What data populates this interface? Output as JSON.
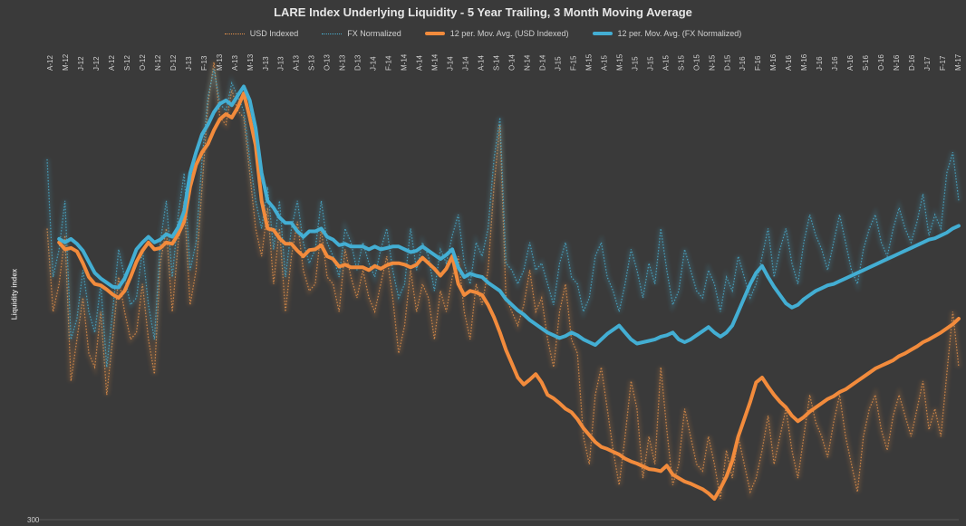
{
  "chart_data": {
    "type": "line",
    "title": "LARE Index Underlying Liquidity - 5 Year Trailing, 3 Month Moving Average",
    "ylabel": "Liquidity index",
    "ytick_labels": [
      {
        "value": 300,
        "label": "300"
      }
    ],
    "ylim": [
      300,
      940
    ],
    "legend_position": "top",
    "x_tick_labels": [
      "A-12",
      "M-12",
      "J-12",
      "J-12",
      "A-12",
      "S-12",
      "O-12",
      "N-12",
      "D-12",
      "J-13",
      "F-13",
      "M-13",
      "A-13",
      "M-13",
      "J-13",
      "J-13",
      "A-13",
      "S-13",
      "O-13",
      "N-13",
      "D-13",
      "J-14",
      "F-14",
      "M-14",
      "A-14",
      "M-14",
      "J-14",
      "J-14",
      "A-14",
      "S-14",
      "O-14",
      "N-14",
      "D-14",
      "J-15",
      "F-15",
      "M-15",
      "A-15",
      "M-15",
      "J-15",
      "J-15",
      "A-15",
      "S-15",
      "O-15",
      "N-15",
      "D-15",
      "J-16",
      "F-16",
      "M-16",
      "A-16",
      "M-16",
      "J-16",
      "J-16",
      "A-16",
      "S-16",
      "O-16",
      "N-16",
      "D-16",
      "J-17",
      "F-17",
      "M-17"
    ],
    "series": [
      {
        "name": "USD Indexed",
        "style": "dotted",
        "color": "#e8934a",
        "values": [
          720,
          600,
          640,
          710,
          500,
          560,
          620,
          540,
          520,
          600,
          480,
          560,
          650,
          600,
          560,
          570,
          640,
          560,
          510,
          670,
          720,
          600,
          700,
          760,
          610,
          660,
          780,
          900,
          960,
          880,
          870,
          920,
          890,
          880,
          800,
          720,
          680,
          750,
          640,
          720,
          600,
          680,
          730,
          660,
          630,
          640,
          720,
          650,
          640,
          600,
          690,
          650,
          620,
          660,
          620,
          600,
          640,
          680,
          620,
          540,
          580,
          660,
          600,
          640,
          620,
          560,
          630,
          600,
          650,
          680,
          600,
          560,
          640,
          610,
          660,
          780,
          870,
          620,
          600,
          580,
          610,
          660,
          600,
          620,
          560,
          520,
          600,
          640,
          560,
          540,
          420,
          380,
          480,
          520,
          460,
          400,
          350,
          420,
          500,
          460,
          360,
          420,
          380,
          520,
          430,
          350,
          380,
          460,
          420,
          380,
          370,
          420,
          380,
          330,
          400,
          360,
          420,
          380,
          340,
          360,
          400,
          450,
          380,
          420,
          460,
          400,
          360,
          420,
          480,
          440,
          420,
          390,
          440,
          480,
          420,
          380,
          340,
          420,
          460,
          480,
          430,
          400,
          450,
          480,
          450,
          420,
          460,
          500,
          430,
          460,
          420,
          510,
          600,
          520
        ]
      },
      {
        "name": "FX Normalized",
        "style": "dotted",
        "color": "#49aecf",
        "values": [
          820,
          650,
          690,
          760,
          560,
          590,
          660,
          600,
          570,
          640,
          520,
          600,
          690,
          650,
          610,
          620,
          690,
          610,
          560,
          700,
          760,
          650,
          740,
          800,
          660,
          700,
          820,
          910,
          950,
          900,
          890,
          930,
          910,
          890,
          820,
          760,
          720,
          780,
          690,
          760,
          650,
          720,
          760,
          700,
          670,
          690,
          760,
          700,
          680,
          650,
          720,
          700,
          660,
          700,
          670,
          650,
          690,
          720,
          660,
          620,
          640,
          720,
          660,
          700,
          680,
          630,
          690,
          670,
          710,
          740,
          670,
          640,
          700,
          680,
          720,
          820,
          880,
          670,
          660,
          640,
          660,
          700,
          660,
          670,
          640,
          610,
          670,
          700,
          650,
          640,
          600,
          620,
          680,
          700,
          650,
          630,
          600,
          640,
          690,
          660,
          620,
          670,
          640,
          720,
          660,
          610,
          630,
          690,
          660,
          630,
          620,
          660,
          640,
          600,
          650,
          630,
          680,
          650,
          620,
          640,
          680,
          720,
          650,
          690,
          720,
          670,
          640,
          700,
          740,
          710,
          690,
          660,
          700,
          740,
          700,
          660,
          640,
          690,
          720,
          740,
          700,
          680,
          720,
          750,
          720,
          700,
          730,
          770,
          710,
          740,
          720,
          800,
          830,
          760
        ]
      },
      {
        "name": "12 per. Mov. Avg. (USD Indexed)",
        "style": "solid",
        "color": "#f28b3c",
        "values": [
          null,
          null,
          700,
          690,
          692,
          687,
          670,
          650,
          640,
          638,
          632,
          625,
          620,
          630,
          650,
          672,
          688,
          700,
          690,
          692,
          700,
          698,
          712,
          730,
          780,
          812,
          830,
          842,
          862,
          878,
          885,
          880,
          895,
          915,
          880,
          840,
          760,
          720,
          718,
          706,
          698,
          698,
          688,
          680,
          689,
          690,
          696,
          680,
          676,
          665,
          668,
          664,
          664,
          664,
          660,
          666,
          662,
          667,
          670,
          670,
          668,
          664,
          668,
          678,
          670,
          662,
          652,
          662,
          680,
          640,
          624,
          630,
          628,
          624,
          610,
          592,
          570,
          545,
          525,
          505,
          495,
          502,
          510,
          498,
          480,
          475,
          468,
          460,
          455,
          445,
          432,
          422,
          412,
          405,
          402,
          398,
          394,
          388,
          384,
          381,
          377,
          373,
          372,
          370,
          378,
          365,
          360,
          355,
          352,
          348,
          344,
          338,
          330,
          345,
          362,
          385,
          420,
          445,
          470,
          498,
          505,
          492,
          480,
          470,
          462,
          450,
          442,
          448,
          456,
          462,
          468,
          474,
          478,
          484,
          488,
          494,
          500,
          506,
          512,
          518,
          522,
          526,
          530,
          536,
          540,
          545,
          550,
          556,
          560,
          565,
          570,
          576,
          582,
          590
        ]
      },
      {
        "name": "12 per. Mov. Avg. (FX Normalized)",
        "style": "solid",
        "color": "#43aed3",
        "values": [
          null,
          null,
          705,
          700,
          705,
          698,
          688,
          672,
          656,
          648,
          642,
          636,
          635,
          648,
          668,
          690,
          700,
          708,
          700,
          704,
          712,
          708,
          722,
          745,
          800,
          830,
          856,
          870,
          888,
          900,
          905,
          898,
          912,
          925,
          905,
          865,
          800,
          760,
          750,
          736,
          728,
          728,
          716,
          708,
          716,
          716,
          720,
          708,
          704,
          696,
          698,
          694,
          694,
          694,
          690,
          694,
          690,
          692,
          694,
          694,
          690,
          686,
          688,
          694,
          688,
          682,
          676,
          682,
          690,
          664,
          650,
          655,
          652,
          650,
          642,
          636,
          630,
          618,
          610,
          602,
          596,
          588,
          582,
          576,
          570,
          566,
          562,
          565,
          570,
          566,
          560,
          556,
          552,
          560,
          568,
          574,
          580,
          570,
          560,
          554,
          556,
          558,
          560,
          564,
          566,
          570,
          560,
          556,
          560,
          566,
          572,
          578,
          570,
          564,
          570,
          580,
          600,
          620,
          640,
          656,
          666,
          650,
          636,
          624,
          612,
          606,
          610,
          618,
          624,
          630,
          634,
          638,
          640,
          644,
          648,
          652,
          656,
          660,
          664,
          668,
          672,
          676,
          680,
          684,
          688,
          692,
          696,
          700,
          704,
          706,
          710,
          714,
          720,
          724
        ]
      }
    ]
  }
}
